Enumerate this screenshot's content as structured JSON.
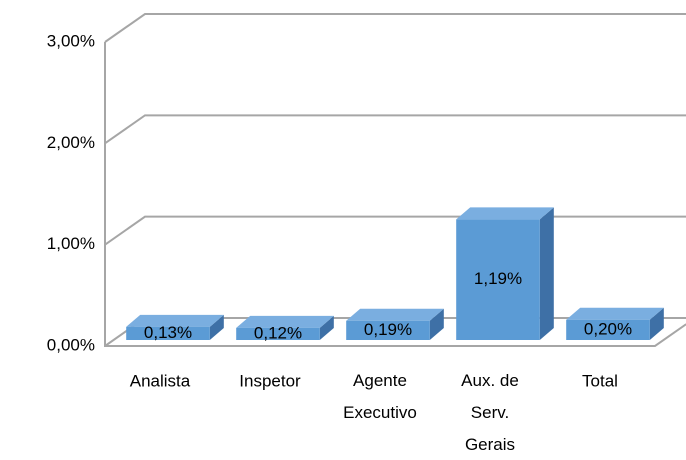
{
  "chart_data": {
    "type": "bar3d",
    "categories": [
      "Analista",
      "Inspetor",
      "Agente Executivo",
      "Aux. de Serv. Gerais",
      "Total"
    ],
    "values": [
      0.13,
      0.12,
      0.19,
      1.19,
      0.2
    ],
    "value_labels": [
      "0,13%",
      "0,12%",
      "0,19%",
      "1,19%",
      "0,20%"
    ],
    "color": "#5b9bd5",
    "ylim": [
      0,
      3
    ],
    "yticks": [
      {
        "value": 0,
        "label": "0,00%"
      },
      {
        "value": 1,
        "label": "1,00%"
      },
      {
        "value": 2,
        "label": "2,00%"
      },
      {
        "value": 3,
        "label": "3,00%"
      }
    ],
    "grid": true
  }
}
